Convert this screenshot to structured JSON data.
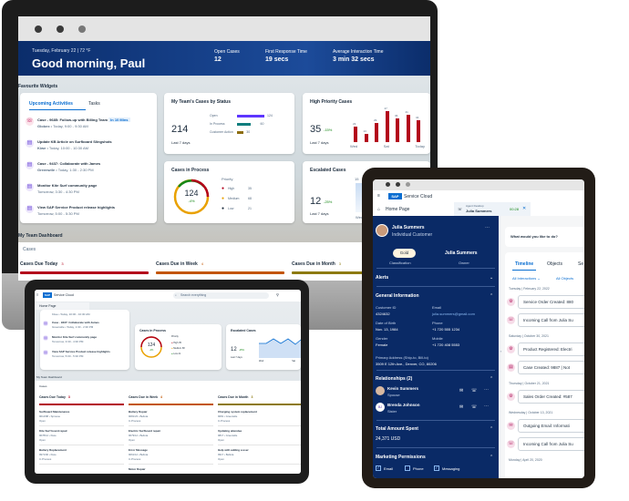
{
  "desktop": {
    "header": {
      "date": "Tuesday, February 22 | 72 °F",
      "greeting": "Good morning, Paul",
      "kpis": [
        {
          "label": "Open Cases",
          "value": "12"
        },
        {
          "label": "First Response Time",
          "value": "19 secs"
        },
        {
          "label": "Average Interaction Time",
          "value": "3 min 32 secs"
        }
      ]
    },
    "favourite_label": "Favourite Widgets",
    "activities": {
      "tabs": [
        "Upcoming Activities",
        "Tasks"
      ],
      "items": [
        {
          "title": "Case - 9685: Follow-up with Billing Team",
          "badge": "In 10 Mins",
          "account": "Globex",
          "time": "Today, 9:00 - 9:30 AM"
        },
        {
          "title": "Update KB Article on Surfboard Slingshots",
          "account": "Kiwe",
          "time": "Today, 10:00 - 10:30 AM"
        },
        {
          "title": "Case - 9437: Collaborate with James",
          "account": "Greenwile",
          "time": "Today, 1:30 - 2:30 PM"
        },
        {
          "title": "Monitor Kite Surf community page",
          "time": "Tomorrow, 3:30 - 4:30 PM"
        },
        {
          "title": "View SAP Service Product release highlights",
          "time": "Tomorrow, 5:00 - 5:30 PM"
        }
      ]
    },
    "team_cases": {
      "title": "My Team's Cases by Status",
      "total": "214",
      "period": "Last 7 days",
      "rows": [
        {
          "label": "Open",
          "value": 124,
          "color": "#5d36ff"
        },
        {
          "label": "In Process",
          "value": 60,
          "color": "#0f7d7d"
        },
        {
          "label": "Customer Action",
          "value": 30,
          "color": "#8d6e10"
        }
      ]
    },
    "high_priority": {
      "title": "High Priority Cases",
      "value": "35",
      "delta": "-15%",
      "period": "Last 7 days",
      "bars": [
        23,
        13,
        29,
        47,
        36,
        41,
        34
      ],
      "xlabels": [
        "Wed",
        "Sat",
        "Today"
      ]
    },
    "in_process": {
      "title": "Cases in Process",
      "value": "124",
      "delta": "-4%",
      "legend_title": "Priority",
      "rows": [
        {
          "label": "High",
          "value": "35",
          "color": "#b3001b"
        },
        {
          "label": "Medium",
          "value": "68",
          "color": "#e9a100"
        },
        {
          "label": "Low",
          "value": "21",
          "color": "#1d2d3e"
        }
      ]
    },
    "escalated": {
      "title": "Escalated Cases",
      "value": "12",
      "delta": "-25%",
      "period": "Last 7 days",
      "point": "15",
      "xlabel": "Wed"
    },
    "team_dashboard_label": "My Team Dashboard",
    "cases_label": "Cases",
    "case_columns": [
      {
        "label": "Cases Due Today",
        "count": "3",
        "color": "#b3001b"
      },
      {
        "label": "Cases Due in Week",
        "count": "4",
        "color": "#c35500"
      },
      {
        "label": "Cases Due in Month",
        "count": "3",
        "color": "#8d7a10"
      }
    ]
  },
  "small_tablet": {
    "app_name": "Service Cloud",
    "search_placeholder": "Search everything",
    "home_tab": "Home Page",
    "activities": [
      {
        "title": "Case - 9437: Collaborate with James",
        "sub": "Greenwile • Today, 1:30 - 2:30 PM"
      },
      {
        "title": "Monitor Kite Surf community page",
        "sub": "Tomorrow, 3:30 - 4:30 PM"
      },
      {
        "title": "View SAP Service Product release highlights",
        "sub": "Tomorrow, 5:00 - 5:30 PM"
      }
    ],
    "activity_top": "Kiwe • Today, 10:00 - 10:30 AM",
    "in_process": {
      "title": "Cases in Process",
      "value": "124",
      "delta": "-4%",
      "legend_title": "Priority",
      "rows": [
        {
          "label": "High",
          "value": "35"
        },
        {
          "label": "Medium",
          "value": "68"
        },
        {
          "label": "Low",
          "value": "21"
        }
      ]
    },
    "escalated": {
      "title": "Escalated Cases",
      "value": "12",
      "delta": "-25%",
      "period": "Last 7 days",
      "xlabels": [
        "Wed",
        "Sat"
      ]
    },
    "team_dashboard_label": "My Team Dashboard",
    "cases_label": "Cases",
    "columns": [
      {
        "label": "Cases Due Today",
        "count": "3",
        "items": [
          {
            "title": "Surfboard Maintenance",
            "id": "9014/88",
            "acct": "Sprouse",
            "status": "Open"
          },
          {
            "title": "Kite Surf board repair",
            "id": "9078/12",
            "acct": "Kiwe",
            "status": "Open"
          },
          {
            "title": "Battery Replacement",
            "id": "9971/90",
            "acct": "Kiwe",
            "status": "In Process"
          }
        ]
      },
      {
        "label": "Cases Due in Week",
        "count": "4",
        "items": [
          {
            "title": "Battery Repair",
            "id": "9081/23",
            "acct": "Bellota",
            "status": "In Process"
          },
          {
            "title": "Electric Surfboard repair",
            "id": "9079/12",
            "acct": "Bellota",
            "status": "Open"
          },
          {
            "title": "Error Message",
            "id": "9061/12",
            "acct": "Bellota",
            "status": "In Process"
          },
          {
            "title": "Motor Repair",
            "id": "",
            "acct": "",
            "status": ""
          }
        ]
      },
      {
        "label": "Cases Due in Month",
        "count": "3",
        "items": [
          {
            "title": "Charging system replacement",
            "id": "9081",
            "acct": "Greenwile",
            "status": "In Process"
          },
          {
            "title": "Updating attendee",
            "id": "9817",
            "acct": "Greenwile",
            "status": "Open"
          },
          {
            "title": "Help with adding a user",
            "id": "9917",
            "acct": "Bellota",
            "status": "Open"
          }
        ]
      }
    ]
  },
  "large_tablet": {
    "app_name": "Service Cloud",
    "home_tab": "Home Page",
    "agent_tab": {
      "label": "Agent Desktop",
      "name": "Julia Summers",
      "timer": "00:28"
    },
    "customer": {
      "name": "Julia Summers",
      "type": "Individual Customer",
      "classification": "Gold",
      "classification_label": "Classification",
      "owner": "Julia Summers",
      "owner_label": "Owner"
    },
    "alerts_label": "Alerts",
    "general_info_label": "General Information",
    "fields": [
      {
        "label": "Customer ID",
        "value": "4324632"
      },
      {
        "label": "Email",
        "value": "julia.summers@gmail.com"
      },
      {
        "label": "Date of Birth",
        "value": "Nov. 13, 1984"
      },
      {
        "label": "Phone",
        "value": "+1 720 555 1234"
      },
      {
        "label": "Gender",
        "value": "Female"
      },
      {
        "label": "Mobile",
        "value": "+1 720 408 5553"
      }
    ],
    "address_label": "Primary Address (Ship-to, Bill-to)",
    "address": "3509 E 12th Ave., Denver, CO, 80206",
    "relationships_label": "Relationships (2)",
    "relationships": [
      {
        "name": "Kevin Summers",
        "role": "Spouse",
        "initials": "KS"
      },
      {
        "name": "Brenda Johnson",
        "role": "Sister",
        "initials": "BJ"
      }
    ],
    "total_spent_label": "Total Amount Spent",
    "total_spent": "24,371 USD",
    "marketing_label": "Marketing Permissions",
    "permissions": [
      {
        "label": "Email",
        "checked": true
      },
      {
        "label": "Phone",
        "checked": false
      },
      {
        "label": "Messaging",
        "checked": true
      }
    ],
    "prompt": "What would you like to do?",
    "tabs": [
      "Timeline",
      "Objects",
      "Se"
    ],
    "filters": [
      "All Interactions",
      "All Objects"
    ],
    "timeline": [
      {
        "date": "Tuesday | February 22, 2022",
        "items": [
          {
            "text": "Service Order Created: 880",
            "icon": "gear"
          },
          {
            "text": "Incoming Call from Julia Su",
            "icon": "phone"
          }
        ]
      },
      {
        "date": "Saturday | October 30, 2021",
        "items": [
          {
            "text": "Product Registered: Electri",
            "icon": "gear"
          },
          {
            "text": "Case Created: 9887 | Not",
            "icon": "case"
          }
        ]
      },
      {
        "date": "Thursday | October 21, 2021",
        "items": [
          {
            "text": "Sales Order Created: #587",
            "icon": "gear"
          }
        ]
      },
      {
        "date": "Wednesday | October 13, 2021",
        "items": [
          {
            "text": "Outgoing Email: Informati",
            "icon": "mail"
          },
          {
            "text": "Incoming Call from Julia Su",
            "icon": "phone"
          }
        ]
      },
      {
        "date": "Monday | April 20, 2020",
        "items": []
      }
    ]
  }
}
